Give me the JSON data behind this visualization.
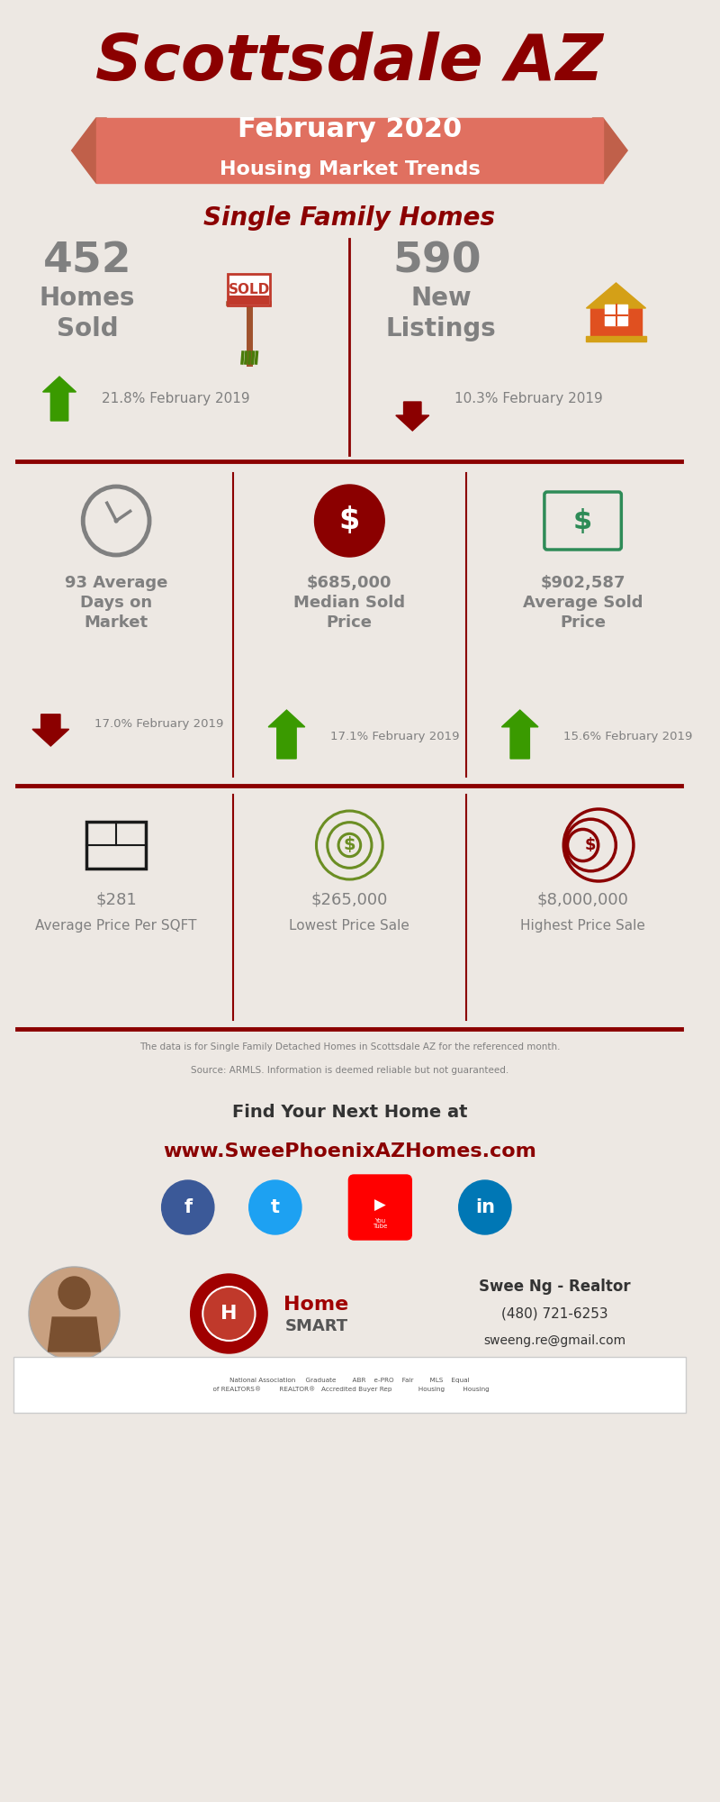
{
  "bg_color": "#ede8e3",
  "title": "Scottsdale AZ",
  "title_color": "#8b0000",
  "banner_color": "#e07060",
  "banner_text1": "February 2020",
  "banner_text2": "Housing Market Trends",
  "subtitle": "Single Family Homes",
  "subtitle_color": "#8b0000",
  "divider_color": "#8b0000",
  "text_color": "#808080",
  "green_arrow": "#3a9a00",
  "dark_red_arrow": "#8b0000",
  "clock_color": "#808080",
  "dollar_circle_color": "#8b0000",
  "dollar_rect_color": "#2e8b57",
  "floor_plan_color": "#1a1a1a",
  "facebook_color": "#3b5998",
  "twitter_color": "#1da1f2",
  "youtube_color": "#ff0000",
  "linkedin_color": "#0077b5",
  "section1_left_number": "452",
  "section1_left_label": "Homes\nSold",
  "section1_left_pct": "21.8% February 2019",
  "section1_right_number": "590",
  "section1_right_label": "New\nListings",
  "section1_right_pct": "10.3% February 2019",
  "section2_col1": "93 Average\nDays on\nMarket",
  "section2_col1_pct": "17.0% February 2019",
  "section2_col2": "$685,000\nMedian Sold\nPrice",
  "section2_col2_pct": "17.1% February 2019",
  "section2_col3": "$902,587\nAverage Sold\nPrice",
  "section2_col3_pct": "15.6% February 2019",
  "section3_col1_num": "$281",
  "section3_col1_lbl": "Average Price Per SQFT",
  "section3_col2_num": "$265,000",
  "section3_col2_lbl": "Lowest Price Sale",
  "section3_col3_num": "$8,000,000",
  "section3_col3_lbl": "Highest Price Sale",
  "footer_text1": "The data is for Single Family Detached Homes in Scottsdale AZ for the referenced month.",
  "footer_text2": "Source: ARMLS. Information is deemed reliable but not guaranteed.",
  "footer_cta1": "Find Your Next Home at",
  "footer_cta2": "www.SweePhoenixAZHomes.com",
  "agent_name": "Swee Ng - Realtor",
  "agent_phone": "(480) 721-6253",
  "agent_email": "sweeng.re@gmail.com"
}
